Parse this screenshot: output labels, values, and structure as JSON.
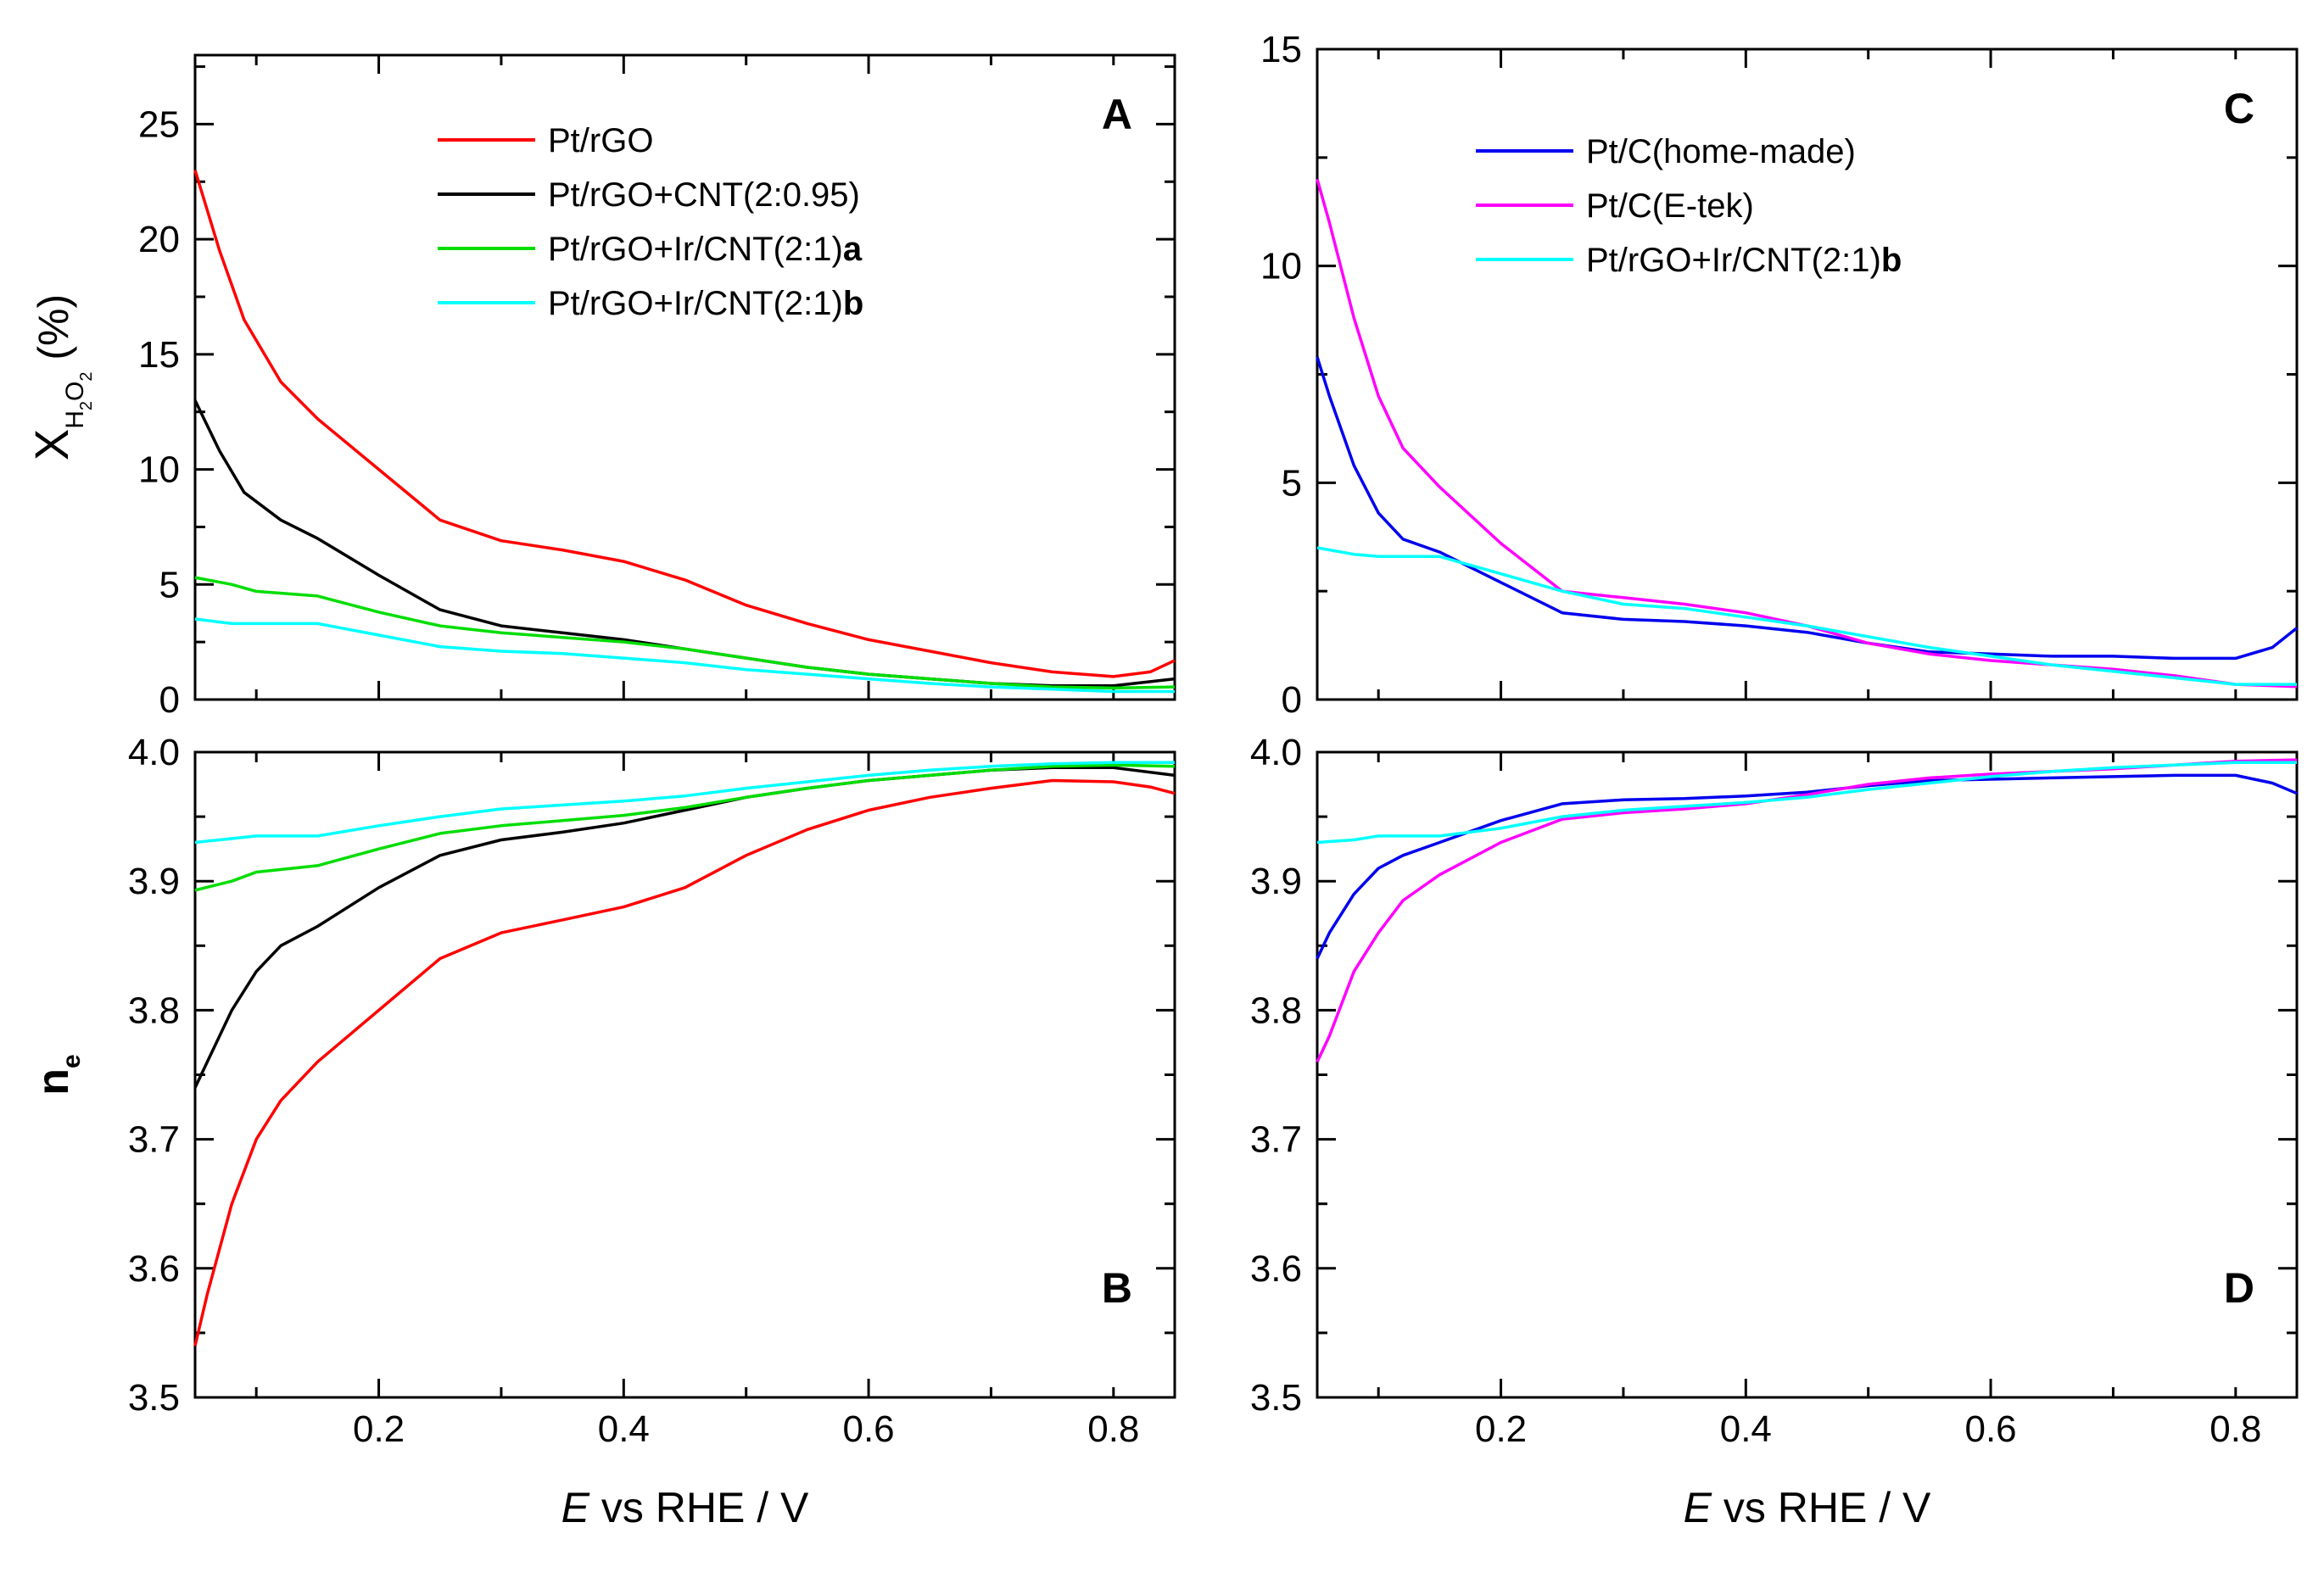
{
  "chart_data": [
    {
      "id": "A",
      "type": "line",
      "panel_label": "A",
      "ylabel": "X_H2O2 (%)",
      "ylabel_parts": {
        "main": "X",
        "sub1": "H",
        "sub2": "2",
        "sub3": "O",
        "sub4": "2",
        "unit": "(%)"
      },
      "xlabel": "",
      "xlim": [
        0.05,
        0.85
      ],
      "ylim": [
        0,
        28
      ],
      "yticks": [
        0,
        5,
        10,
        15,
        20,
        25
      ],
      "ytick_labels": [
        "0",
        "5",
        "10",
        "15",
        "20",
        "25"
      ],
      "xticks": [
        0.2,
        0.4,
        0.6,
        0.8
      ],
      "legend_position": "top-center",
      "series": [
        {
          "name": "Pt/rGO",
          "name_main": "Pt/rGO",
          "name_bold": "",
          "color": "#ff0000",
          "x": [
            0.05,
            0.07,
            0.09,
            0.12,
            0.15,
            0.2,
            0.25,
            0.3,
            0.35,
            0.4,
            0.45,
            0.5,
            0.55,
            0.6,
            0.65,
            0.7,
            0.75,
            0.8,
            0.83,
            0.85
          ],
          "y": [
            23,
            19.5,
            16.5,
            13.8,
            12.2,
            10,
            7.8,
            6.9,
            6.5,
            6.0,
            5.2,
            4.1,
            3.3,
            2.6,
            2.1,
            1.6,
            1.2,
            1.0,
            1.2,
            1.7
          ]
        },
        {
          "name": "Pt/rGO+CNT(2:0.95)",
          "name_main": "Pt/rGO+CNT(2:0.95)",
          "name_bold": "",
          "color": "#000000",
          "x": [
            0.05,
            0.07,
            0.09,
            0.12,
            0.15,
            0.2,
            0.25,
            0.3,
            0.35,
            0.4,
            0.45,
            0.5,
            0.55,
            0.6,
            0.65,
            0.7,
            0.75,
            0.8,
            0.85
          ],
          "y": [
            13,
            10.8,
            9.0,
            7.8,
            7.0,
            5.4,
            3.9,
            3.2,
            2.9,
            2.6,
            2.2,
            1.8,
            1.4,
            1.1,
            0.9,
            0.7,
            0.6,
            0.6,
            0.9
          ]
        },
        {
          "name": "Pt/rGO+Ir/CNT(2:1)a",
          "name_main": "Pt/rGO+Ir/CNT(2:1)",
          "name_bold": "a",
          "color": "#00dd00",
          "x": [
            0.05,
            0.08,
            0.1,
            0.15,
            0.2,
            0.25,
            0.3,
            0.35,
            0.4,
            0.45,
            0.5,
            0.55,
            0.6,
            0.65,
            0.7,
            0.75,
            0.8,
            0.85
          ],
          "y": [
            5.3,
            5.0,
            4.7,
            4.5,
            3.8,
            3.2,
            2.9,
            2.7,
            2.5,
            2.2,
            1.8,
            1.4,
            1.1,
            0.9,
            0.7,
            0.55,
            0.5,
            0.55
          ]
        },
        {
          "name": "Pt/rGO+Ir/CNT(2:1)b",
          "name_main": "Pt/rGO+Ir/CNT(2:1)",
          "name_bold": "b",
          "color": "#00ffff",
          "x": [
            0.05,
            0.08,
            0.1,
            0.15,
            0.2,
            0.25,
            0.3,
            0.35,
            0.4,
            0.45,
            0.5,
            0.55,
            0.6,
            0.65,
            0.7,
            0.75,
            0.8,
            0.85
          ],
          "y": [
            3.5,
            3.3,
            3.3,
            3.3,
            2.8,
            2.3,
            2.1,
            2.0,
            1.8,
            1.6,
            1.3,
            1.1,
            0.9,
            0.7,
            0.55,
            0.45,
            0.35,
            0.35
          ]
        }
      ]
    },
    {
      "id": "B",
      "type": "line",
      "panel_label": "B",
      "ylabel": "n_e",
      "ylabel_parts": {
        "main": "n",
        "sub": "e"
      },
      "xlabel": "E vs RHE / V",
      "xlabel_parts": {
        "italic": "E",
        "rest": " vs RHE / V"
      },
      "xlim": [
        0.05,
        0.85
      ],
      "ylim": [
        3.5,
        4.0
      ],
      "yticks": [
        3.5,
        3.6,
        3.7,
        3.8,
        3.9,
        4.0
      ],
      "ytick_labels": [
        "3.5",
        "3.6",
        "3.7",
        "3.8",
        "3.9",
        "4.0"
      ],
      "xticks": [
        0.2,
        0.4,
        0.6,
        0.8
      ],
      "xtick_labels": [
        "0.2",
        "0.4",
        "0.6",
        "0.8"
      ],
      "series": [
        {
          "name": "Pt/rGO",
          "color": "#ff0000",
          "x": [
            0.05,
            0.06,
            0.08,
            0.1,
            0.12,
            0.15,
            0.2,
            0.25,
            0.3,
            0.35,
            0.4,
            0.45,
            0.5,
            0.55,
            0.6,
            0.65,
            0.7,
            0.75,
            0.8,
            0.83,
            0.85
          ],
          "y": [
            3.54,
            3.58,
            3.65,
            3.7,
            3.73,
            3.76,
            3.8,
            3.84,
            3.86,
            3.87,
            3.88,
            3.895,
            3.92,
            3.94,
            3.955,
            3.965,
            3.972,
            3.978,
            3.977,
            3.973,
            3.968
          ]
        },
        {
          "name": "Pt/rGO+CNT(2:0.95)",
          "color": "#000000",
          "x": [
            0.05,
            0.06,
            0.08,
            0.1,
            0.12,
            0.15,
            0.2,
            0.25,
            0.3,
            0.35,
            0.4,
            0.45,
            0.5,
            0.55,
            0.6,
            0.65,
            0.7,
            0.75,
            0.8,
            0.85
          ],
          "y": [
            3.74,
            3.76,
            3.8,
            3.83,
            3.85,
            3.865,
            3.895,
            3.92,
            3.932,
            3.938,
            3.945,
            3.955,
            3.965,
            3.972,
            3.978,
            3.982,
            3.986,
            3.988,
            3.988,
            3.982
          ]
        },
        {
          "name": "Pt/rGO+Ir/CNT(2:1)a",
          "color": "#00dd00",
          "x": [
            0.05,
            0.08,
            0.1,
            0.15,
            0.2,
            0.25,
            0.3,
            0.35,
            0.4,
            0.45,
            0.5,
            0.55,
            0.6,
            0.65,
            0.7,
            0.75,
            0.8,
            0.85
          ],
          "y": [
            3.893,
            3.9,
            3.907,
            3.912,
            3.925,
            3.937,
            3.943,
            3.947,
            3.951,
            3.957,
            3.965,
            3.972,
            3.978,
            3.982,
            3.986,
            3.989,
            3.99,
            3.989
          ]
        },
        {
          "name": "Pt/rGO+Ir/CNT(2:1)b",
          "color": "#00ffff",
          "x": [
            0.05,
            0.08,
            0.1,
            0.15,
            0.2,
            0.25,
            0.3,
            0.35,
            0.4,
            0.45,
            0.5,
            0.55,
            0.6,
            0.65,
            0.7,
            0.75,
            0.8,
            0.85
          ],
          "y": [
            3.93,
            3.933,
            3.935,
            3.935,
            3.943,
            3.95,
            3.956,
            3.959,
            3.962,
            3.966,
            3.972,
            3.977,
            3.982,
            3.986,
            3.989,
            3.991,
            3.992,
            3.992
          ]
        }
      ]
    },
    {
      "id": "C",
      "type": "line",
      "panel_label": "C",
      "ylabel": "",
      "xlabel": "",
      "xlim": [
        0.05,
        0.85
      ],
      "ylim": [
        0,
        15
      ],
      "yticks": [
        0,
        5,
        10,
        15
      ],
      "ytick_labels": [
        "0",
        "5",
        "10",
        "15"
      ],
      "xticks": [
        0.2,
        0.4,
        0.6,
        0.8
      ],
      "legend_position": "top-center",
      "series": [
        {
          "name": "Pt/C(home-made)",
          "name_main": "Pt/C(home-made)",
          "name_bold": "",
          "color": "#0000ee",
          "x": [
            0.05,
            0.06,
            0.08,
            0.1,
            0.12,
            0.15,
            0.2,
            0.25,
            0.3,
            0.35,
            0.4,
            0.45,
            0.5,
            0.55,
            0.6,
            0.65,
            0.7,
            0.75,
            0.8,
            0.83,
            0.85
          ],
          "y": [
            7.9,
            7.0,
            5.4,
            4.3,
            3.7,
            3.4,
            2.7,
            2.0,
            1.85,
            1.8,
            1.7,
            1.55,
            1.3,
            1.1,
            1.05,
            1.0,
            1.0,
            0.95,
            0.95,
            1.2,
            1.65
          ]
        },
        {
          "name": "Pt/C(E-tek)",
          "name_main": "Pt/C(E-tek)",
          "name_bold": "",
          "color": "#ff00ff",
          "x": [
            0.05,
            0.06,
            0.08,
            0.1,
            0.12,
            0.15,
            0.2,
            0.25,
            0.3,
            0.35,
            0.4,
            0.45,
            0.5,
            0.55,
            0.6,
            0.65,
            0.7,
            0.75,
            0.8,
            0.85
          ],
          "y": [
            12.0,
            11.0,
            8.8,
            7.0,
            5.8,
            4.9,
            3.6,
            2.5,
            2.35,
            2.2,
            2.0,
            1.7,
            1.3,
            1.05,
            0.9,
            0.8,
            0.7,
            0.55,
            0.35,
            0.3
          ]
        },
        {
          "name": "Pt/rGO+Ir/CNT(2:1)b",
          "name_main": "Pt/rGO+Ir/CNT(2:1)",
          "name_bold": "b",
          "color": "#00ffff",
          "x": [
            0.05,
            0.08,
            0.1,
            0.15,
            0.2,
            0.25,
            0.3,
            0.35,
            0.4,
            0.45,
            0.5,
            0.55,
            0.6,
            0.65,
            0.7,
            0.75,
            0.8,
            0.85
          ],
          "y": [
            3.5,
            3.35,
            3.3,
            3.3,
            2.9,
            2.5,
            2.2,
            2.1,
            1.9,
            1.7,
            1.45,
            1.2,
            1.0,
            0.8,
            0.65,
            0.5,
            0.35,
            0.35
          ]
        }
      ]
    },
    {
      "id": "D",
      "type": "line",
      "panel_label": "D",
      "ylabel": "",
      "xlabel": "E vs RHE / V",
      "xlabel_parts": {
        "italic": "E",
        "rest": " vs RHE / V"
      },
      "xlim": [
        0.05,
        0.85
      ],
      "ylim": [
        3.5,
        4.0
      ],
      "yticks": [
        3.5,
        3.6,
        3.7,
        3.8,
        3.9,
        4.0
      ],
      "ytick_labels": [
        "3.5",
        "3.6",
        "3.7",
        "3.8",
        "3.9",
        "4.0"
      ],
      "xticks": [
        0.2,
        0.4,
        0.6,
        0.8
      ],
      "xtick_labels": [
        "0.2",
        "0.4",
        "0.6",
        "0.8"
      ],
      "series": [
        {
          "name": "Pt/C(home-made)",
          "color": "#0000ee",
          "x": [
            0.05,
            0.06,
            0.08,
            0.1,
            0.12,
            0.15,
            0.2,
            0.25,
            0.3,
            0.35,
            0.4,
            0.45,
            0.5,
            0.55,
            0.6,
            0.65,
            0.7,
            0.75,
            0.8,
            0.83,
            0.85
          ],
          "y": [
            3.84,
            3.86,
            3.89,
            3.91,
            3.92,
            3.93,
            3.947,
            3.96,
            3.963,
            3.964,
            3.966,
            3.969,
            3.974,
            3.978,
            3.979,
            3.98,
            3.981,
            3.982,
            3.982,
            3.976,
            3.968
          ]
        },
        {
          "name": "Pt/C(E-tek)",
          "color": "#ff00ff",
          "x": [
            0.05,
            0.06,
            0.08,
            0.1,
            0.12,
            0.15,
            0.2,
            0.25,
            0.3,
            0.35,
            0.4,
            0.45,
            0.5,
            0.55,
            0.6,
            0.65,
            0.7,
            0.75,
            0.8,
            0.85
          ],
          "y": [
            3.76,
            3.78,
            3.83,
            3.86,
            3.885,
            3.905,
            3.93,
            3.948,
            3.953,
            3.956,
            3.96,
            3.967,
            3.975,
            3.98,
            3.983,
            3.985,
            3.987,
            3.99,
            3.993,
            3.994
          ]
        },
        {
          "name": "Pt/rGO+Ir/CNT(2:1)b",
          "color": "#00ffff",
          "x": [
            0.05,
            0.08,
            0.1,
            0.15,
            0.2,
            0.25,
            0.3,
            0.35,
            0.4,
            0.45,
            0.5,
            0.55,
            0.6,
            0.65,
            0.7,
            0.75,
            0.8,
            0.85
          ],
          "y": [
            3.93,
            3.932,
            3.935,
            3.935,
            3.941,
            3.95,
            3.955,
            3.958,
            3.961,
            3.965,
            3.971,
            3.976,
            3.981,
            3.985,
            3.988,
            3.99,
            3.992,
            3.992
          ]
        }
      ]
    }
  ]
}
